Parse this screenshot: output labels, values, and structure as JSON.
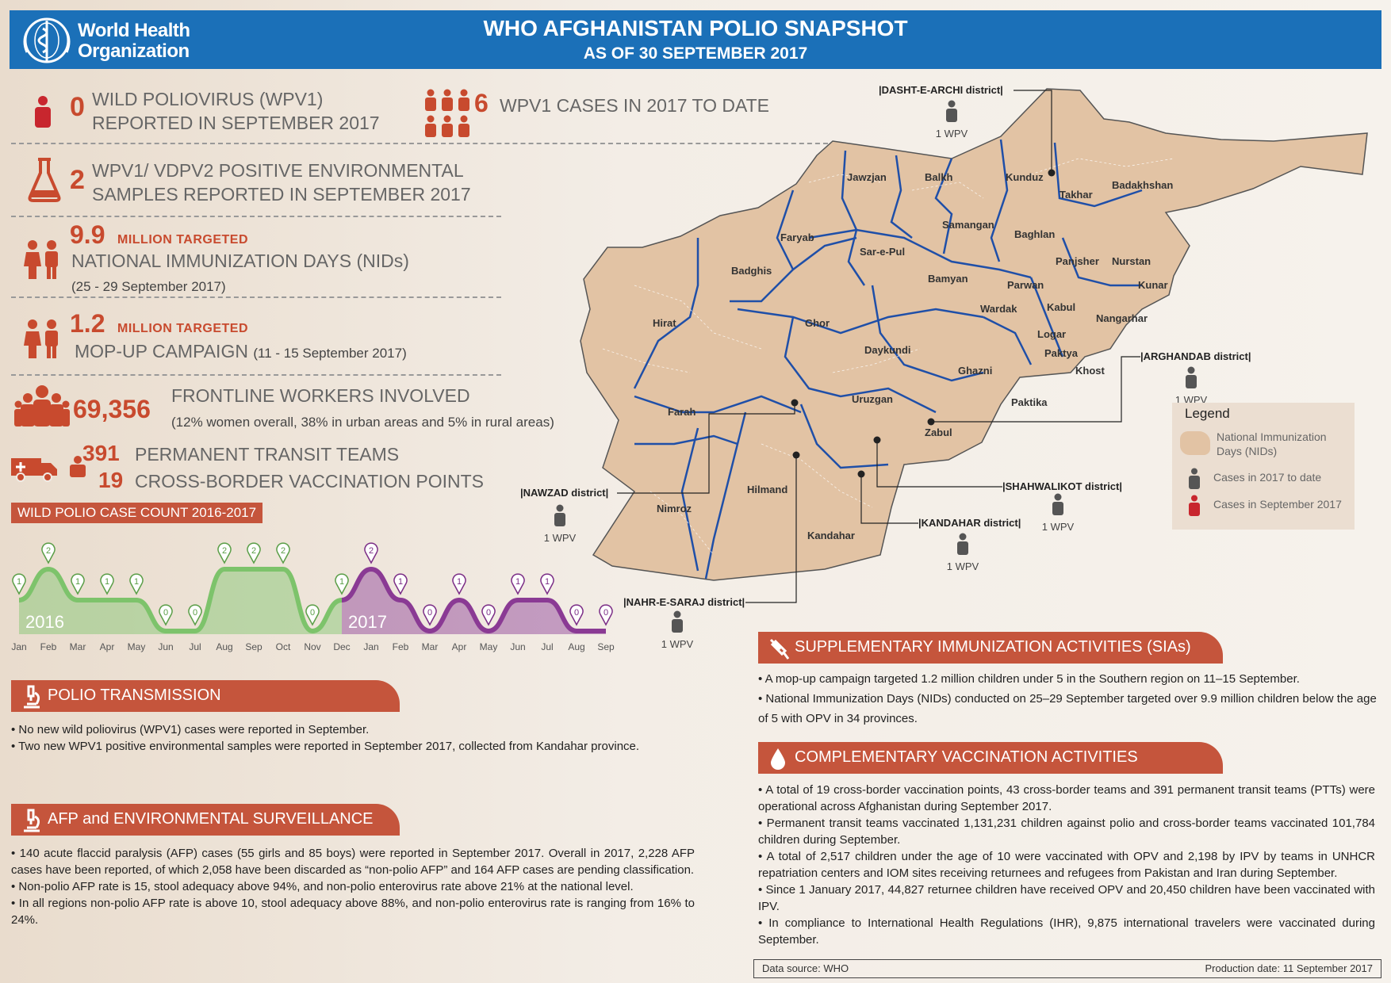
{
  "header": {
    "org_name_line1": "World Health",
    "org_name_line2": "Organization",
    "title": "WHO AFGHANISTAN POLIO SNAPSHOT",
    "subtitle": "AS OF 30 SEPTEMBER 2017"
  },
  "stats": {
    "wpv_sept_value": "0",
    "wpv_sept_line1": "WILD POLIOVIRUS (WPV1)",
    "wpv_sept_line2": "REPORTED IN SEPTEMBER 2017",
    "wpv_year_value": "6",
    "wpv_year_label": "WPV1 CASES IN 2017 TO DATE",
    "env_value": "2",
    "env_line1": "WPV1/ VDPV2 POSITIVE ENVIRONMENTAL",
    "env_line2": "SAMPLES REPORTED IN SEPTEMBER 2017",
    "nid_value": "9.9",
    "nid_million": "MILLION TARGETED",
    "nid_label": "NATIONAL IMMUNIZATION DAYS (NIDs)",
    "nid_dates": "(25 - 29 September 2017)",
    "mop_value": "1.2",
    "mop_million": "MILLION TARGETED",
    "mop_label": "MOP-UP CAMPAIGN",
    "mop_dates": "(11 - 15 September 2017)",
    "fw_value": "69,356",
    "fw_label": "FRONTLINE WORKERS INVOLVED",
    "fw_note": "(12% women overall, 38% in urban areas and 5% in rural areas)",
    "ptt_value": "391",
    "ptt_label": "PERMANENT TRANSIT TEAMS",
    "cb_value": "19",
    "cb_label": "CROSS-BORDER VACCINATION POINTS"
  },
  "chart_data": {
    "type": "area",
    "title": "WILD POLIO CASE COUNT 2016-2017",
    "series": [
      {
        "name": "2016",
        "color": "#7dc36b",
        "categories": [
          "Jan",
          "Feb",
          "Mar",
          "Apr",
          "May",
          "Jun",
          "Jul",
          "Aug",
          "Sep",
          "Oct",
          "Nov",
          "Dec"
        ],
        "values": [
          1,
          2,
          1,
          1,
          1,
          0,
          0,
          2,
          2,
          2,
          0,
          1
        ]
      },
      {
        "name": "2017",
        "color": "#8a3a94",
        "categories": [
          "Jan",
          "Feb",
          "Mar",
          "Apr",
          "May",
          "Jun",
          "Jul",
          "Aug",
          "Sep"
        ],
        "values": [
          2,
          1,
          0,
          1,
          0,
          1,
          1,
          0,
          0
        ]
      }
    ],
    "ylim": [
      0,
      2
    ]
  },
  "map": {
    "provinces": [
      "Jawzjan",
      "Balkh",
      "Kunduz",
      "Takhar",
      "Badakhshan",
      "Faryab",
      "Samangan",
      "Baghlan",
      "Sar-e-Pul",
      "Badghis",
      "Panjsher",
      "Nurstan",
      "Bamyan",
      "Parwan",
      "Kunar",
      "Kabul",
      "Wardak",
      "Nangarhar",
      "Hirat",
      "Ghor",
      "Logar",
      "Daykundi",
      "Paktya",
      "Khost",
      "Ghazni",
      "Uruzgan",
      "Paktika",
      "Farah",
      "Zabul",
      "Hilmand",
      "Nimroz",
      "Kandahar"
    ],
    "districts": {
      "dasht": "DASHT-E-ARCHI district",
      "arghandab": "ARGHANDAB district",
      "nawzad": "NAWZAD district",
      "shahwalikot": "SHAHWALIKOT district",
      "kandahar": "KANDAHAR district",
      "nahr": "NAHR-E-SARAJ district"
    },
    "wpv_label": "1 WPV"
  },
  "legend": {
    "title": "Legend",
    "nid": "National Immunization Days (NIDs)",
    "cases_year": "Cases in 2017 to date",
    "cases_sept": "Cases in September 2017"
  },
  "sections": {
    "transmission": {
      "title": "POLIO TRANSMISSION",
      "items": [
        "• No new wild poliovirus (WPV1) cases were reported in September.",
        "• Two new WPV1 positive environmental samples were reported in September 2017, collected from Kandahar province."
      ]
    },
    "afp": {
      "title": "AFP and ENVIRONMENTAL SURVEILLANCE",
      "items": [
        "• 140 acute flaccid paralysis (AFP) cases (55 girls and 85 boys) were reported in September 2017. Overall in 2017, 2,228 AFP cases have been reported, of which 2,058 have been discarded as “non-polio AFP” and 164 AFP cases are pending classification.",
        "• Non-polio AFP rate is 15, stool adequacy above 94%, and non-polio enterovirus rate above 21% at the national level.",
        "• In all regions non-polio AFP rate is above 10, stool adequacy above 88%, and non-polio enterovirus rate is ranging from 16% to 24%."
      ]
    },
    "sia": {
      "title": "SUPPLEMENTARY IMMUNIZATION ACTIVITIES (SIAs)",
      "items": [
        "• A mop-up campaign targeted 1.2 million children under 5 in the Southern region on 11–15 September.",
        "• National Immunization Days (NIDs) conducted on 25–29 September targeted over 9.9 million children below the age of 5 with OPV in 34 provinces."
      ]
    },
    "cva": {
      "title": "COMPLEMENTARY VACCINATION ACTIVITIES",
      "items": [
        "• A total of 19 cross-border vaccination points, 43 cross-border teams and 391 permanent transit teams (PTTs) were operational across Afghanistan during September 2017.",
        "• Permanent transit teams vaccinated 1,131,231 children against polio and cross-border teams vaccinated 101,784 children during September.",
        "• A total of 2,517 children under the age of 10 were vaccinated with OPV and 2,198 by IPV by teams in UNHCR repatriation centers and IOM sites receiving returnees and refugees from Pakistan and Iran during September.",
        "• Since 1 January 2017, 44,827 returnee children have received OPV and 20,450 children have been vaccinated with IPV.",
        "• In compliance to International Health Regulations (IHR), 9,875 international travelers were vaccinated during September."
      ]
    }
  },
  "footer": {
    "source": "Data source: WHO",
    "production": "Production date: 11 September 2017"
  },
  "colors": {
    "header": "#1b70b8",
    "accent": "#c84a2e",
    "banner": "#c5553c",
    "map_fill": "#e2c3a4",
    "border": "#1f4fa8"
  }
}
